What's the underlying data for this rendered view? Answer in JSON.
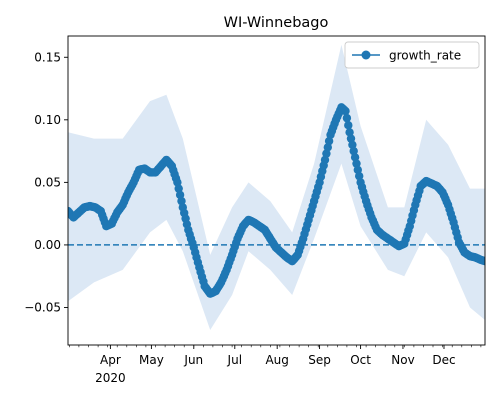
{
  "chart_data": {
    "type": "line",
    "title": "WI-Winnebago",
    "xlabel": "",
    "ylabel": "",
    "x_range": [
      "2020-03-01",
      "2020-12-31"
    ],
    "ylim": [
      -0.08,
      0.167
    ],
    "grid": false,
    "legend_position": "top-right",
    "x_major_ticks": [
      {
        "date": "2020-04-01",
        "label": "Apr",
        "sublabel": "2020"
      },
      {
        "date": "2020-05-01",
        "label": "May",
        "sublabel": ""
      },
      {
        "date": "2020-06-01",
        "label": "Jun",
        "sublabel": ""
      },
      {
        "date": "2020-07-01",
        "label": "Jul",
        "sublabel": ""
      },
      {
        "date": "2020-08-01",
        "label": "Aug",
        "sublabel": ""
      },
      {
        "date": "2020-09-01",
        "label": "Sep",
        "sublabel": ""
      },
      {
        "date": "2020-10-01",
        "label": "Oct",
        "sublabel": ""
      },
      {
        "date": "2020-11-01",
        "label": "Nov",
        "sublabel": ""
      },
      {
        "date": "2020-12-01",
        "label": "Dec",
        "sublabel": ""
      }
    ],
    "y_ticks": [
      {
        "value": -0.05,
        "label": "−0.05"
      },
      {
        "value": 0.0,
        "label": "0.00"
      },
      {
        "value": 0.05,
        "label": "0.05"
      },
      {
        "value": 0.1,
        "label": "0.10"
      },
      {
        "value": 0.15,
        "label": "0.15"
      }
    ],
    "reference_line": {
      "y": 0.0,
      "style": "dashed"
    },
    "colors": {
      "line": "#1f77b4",
      "band": "#dce8f5",
      "reference": "#1f77b4"
    },
    "series": [
      {
        "name": "growth_rate",
        "points": [
          [
            "2020-03-01",
            0.027
          ],
          [
            "2020-03-05",
            0.022
          ],
          [
            "2020-03-09",
            0.026
          ],
          [
            "2020-03-13",
            0.03
          ],
          [
            "2020-03-17",
            0.031
          ],
          [
            "2020-03-21",
            0.03
          ],
          [
            "2020-03-25",
            0.027
          ],
          [
            "2020-03-29",
            0.015
          ],
          [
            "2020-04-02",
            0.017
          ],
          [
            "2020-04-06",
            0.026
          ],
          [
            "2020-04-10",
            0.032
          ],
          [
            "2020-04-14",
            0.042
          ],
          [
            "2020-04-18",
            0.05
          ],
          [
            "2020-04-22",
            0.06
          ],
          [
            "2020-04-26",
            0.061
          ],
          [
            "2020-04-30",
            0.058
          ],
          [
            "2020-05-04",
            0.058
          ],
          [
            "2020-05-08",
            0.063
          ],
          [
            "2020-05-12",
            0.068
          ],
          [
            "2020-05-16",
            0.063
          ],
          [
            "2020-05-20",
            0.05
          ],
          [
            "2020-05-24",
            0.03
          ],
          [
            "2020-05-28",
            0.012
          ],
          [
            "2020-06-01",
            -0.002
          ],
          [
            "2020-06-05",
            -0.018
          ],
          [
            "2020-06-09",
            -0.033
          ],
          [
            "2020-06-13",
            -0.039
          ],
          [
            "2020-06-17",
            -0.037
          ],
          [
            "2020-06-21",
            -0.03
          ],
          [
            "2020-06-25",
            -0.02
          ],
          [
            "2020-06-29",
            -0.008
          ],
          [
            "2020-07-03",
            0.005
          ],
          [
            "2020-07-07",
            0.015
          ],
          [
            "2020-07-11",
            0.02
          ],
          [
            "2020-07-15",
            0.018
          ],
          [
            "2020-07-19",
            0.015
          ],
          [
            "2020-07-23",
            0.012
          ],
          [
            "2020-07-27",
            0.005
          ],
          [
            "2020-07-31",
            -0.002
          ],
          [
            "2020-08-04",
            -0.006
          ],
          [
            "2020-08-08",
            -0.01
          ],
          [
            "2020-08-12",
            -0.013
          ],
          [
            "2020-08-16",
            -0.008
          ],
          [
            "2020-08-20",
            0.005
          ],
          [
            "2020-08-24",
            0.02
          ],
          [
            "2020-08-28",
            0.035
          ],
          [
            "2020-09-01",
            0.05
          ],
          [
            "2020-09-05",
            0.068
          ],
          [
            "2020-09-09",
            0.088
          ],
          [
            "2020-09-13",
            0.1
          ],
          [
            "2020-09-17",
            0.11
          ],
          [
            "2020-09-20",
            0.107
          ],
          [
            "2020-09-23",
            0.09
          ],
          [
            "2020-09-27",
            0.07
          ],
          [
            "2020-10-01",
            0.05
          ],
          [
            "2020-10-05",
            0.035
          ],
          [
            "2020-10-09",
            0.022
          ],
          [
            "2020-10-13",
            0.012
          ],
          [
            "2020-10-17",
            0.008
          ],
          [
            "2020-10-21",
            0.005
          ],
          [
            "2020-10-25",
            0.002
          ],
          [
            "2020-10-29",
            -0.001
          ],
          [
            "2020-11-02",
            0.001
          ],
          [
            "2020-11-06",
            0.015
          ],
          [
            "2020-11-10",
            0.032
          ],
          [
            "2020-11-14",
            0.047
          ],
          [
            "2020-11-18",
            0.051
          ],
          [
            "2020-11-22",
            0.049
          ],
          [
            "2020-11-26",
            0.047
          ],
          [
            "2020-11-30",
            0.042
          ],
          [
            "2020-12-04",
            0.032
          ],
          [
            "2020-12-08",
            0.018
          ],
          [
            "2020-12-12",
            0.002
          ],
          [
            "2020-12-16",
            -0.006
          ],
          [
            "2020-12-20",
            -0.009
          ],
          [
            "2020-12-24",
            -0.01
          ],
          [
            "2020-12-28",
            -0.012
          ],
          [
            "2020-12-31",
            -0.013
          ]
        ],
        "band": [
          [
            "2020-03-01",
            -0.045,
            0.09
          ],
          [
            "2020-03-20",
            -0.03,
            0.085
          ],
          [
            "2020-04-10",
            -0.02,
            0.085
          ],
          [
            "2020-04-30",
            0.01,
            0.115
          ],
          [
            "2020-05-12",
            0.02,
            0.12
          ],
          [
            "2020-05-24",
            -0.005,
            0.085
          ],
          [
            "2020-06-13",
            -0.068,
            -0.008
          ],
          [
            "2020-06-29",
            -0.04,
            0.03
          ],
          [
            "2020-07-11",
            -0.005,
            0.05
          ],
          [
            "2020-07-27",
            -0.02,
            0.035
          ],
          [
            "2020-08-12",
            -0.04,
            0.01
          ],
          [
            "2020-08-28",
            0.005,
            0.065
          ],
          [
            "2020-09-17",
            0.065,
            0.16
          ],
          [
            "2020-10-01",
            0.015,
            0.095
          ],
          [
            "2020-10-21",
            -0.02,
            0.03
          ],
          [
            "2020-11-02",
            -0.025,
            0.03
          ],
          [
            "2020-11-18",
            0.01,
            0.1
          ],
          [
            "2020-12-04",
            -0.01,
            0.08
          ],
          [
            "2020-12-20",
            -0.05,
            0.045
          ],
          [
            "2020-12-31",
            -0.06,
            0.045
          ]
        ]
      }
    ]
  }
}
